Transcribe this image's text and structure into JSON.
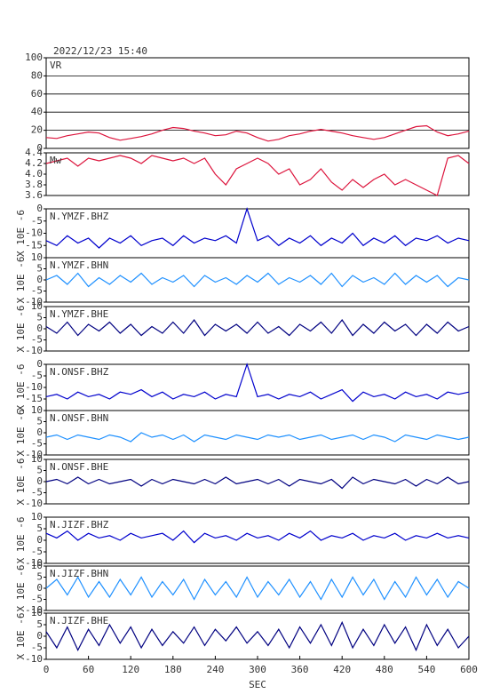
{
  "header": {
    "timestamp": "2022/12/23 15:40"
  },
  "chart_data": [
    {
      "type": "line",
      "title": "VR",
      "color": "#dc143c",
      "grid": true,
      "ylim": [
        0,
        100
      ],
      "yticks": [
        0,
        20,
        40,
        60,
        80,
        100
      ],
      "x": [
        0,
        15,
        30,
        45,
        60,
        75,
        90,
        105,
        120,
        135,
        150,
        165,
        180,
        195,
        210,
        225,
        240,
        255,
        270,
        285,
        300,
        315,
        330,
        345,
        360,
        375,
        390,
        405,
        420,
        435,
        450,
        465,
        480,
        495,
        510,
        525,
        540,
        555,
        570,
        585,
        600
      ],
      "values": [
        12,
        11,
        14,
        16,
        18,
        17,
        12,
        9,
        11,
        13,
        16,
        20,
        23,
        22,
        19,
        17,
        14,
        15,
        19,
        17,
        12,
        8,
        10,
        14,
        16,
        19,
        21,
        19,
        17,
        14,
        12,
        10,
        12,
        16,
        20,
        24,
        25,
        18,
        14,
        16,
        19
      ]
    },
    {
      "type": "line",
      "title": "Mw",
      "color": "#dc143c",
      "grid": false,
      "ylim": [
        3.6,
        4.4
      ],
      "yticks": [
        {
          "value": 3.6,
          "label": "3.6"
        },
        {
          "value": 3.8,
          "label": "3.8"
        },
        {
          "value": 4.0,
          "label": "4.0"
        },
        {
          "value": 4.2,
          "label": "4.2"
        },
        {
          "value": 4.4,
          "label": "4.4"
        }
      ],
      "x": [
        0,
        15,
        30,
        45,
        60,
        75,
        90,
        105,
        120,
        135,
        150,
        165,
        180,
        195,
        210,
        225,
        240,
        255,
        270,
        285,
        300,
        315,
        330,
        345,
        360,
        375,
        390,
        405,
        420,
        435,
        450,
        465,
        480,
        495,
        510,
        525,
        540,
        555,
        570,
        585,
        600
      ],
      "values": [
        4.2,
        4.25,
        4.3,
        4.15,
        4.3,
        4.25,
        4.3,
        4.35,
        4.3,
        4.2,
        4.35,
        4.3,
        4.25,
        4.3,
        4.2,
        4.3,
        4.0,
        3.8,
        4.1,
        4.2,
        4.3,
        4.2,
        4.0,
        4.1,
        3.8,
        3.9,
        4.1,
        3.85,
        3.7,
        3.9,
        3.75,
        3.9,
        4.0,
        3.8,
        3.9,
        3.8,
        3.7,
        3.6,
        4.3,
        4.35,
        4.2
      ]
    },
    {
      "type": "line",
      "title": "N.YMZF.BHZ",
      "ylabel": "X 10E -6",
      "color": "#0000cd",
      "ylim": [
        -20,
        0
      ],
      "yticks": [
        0,
        -5,
        -10,
        -15
      ],
      "x": [
        0,
        15,
        30,
        45,
        60,
        75,
        90,
        105,
        120,
        135,
        150,
        165,
        180,
        195,
        210,
        225,
        240,
        255,
        270,
        285,
        300,
        315,
        330,
        345,
        360,
        375,
        390,
        405,
        420,
        435,
        450,
        465,
        480,
        495,
        510,
        525,
        540,
        555,
        570,
        585,
        600
      ],
      "values": [
        -13,
        -15,
        -11,
        -14,
        -12,
        -16,
        -12,
        -14,
        -11,
        -15,
        -13,
        -12,
        -15,
        -11,
        -14,
        -12,
        -13,
        -11,
        -14,
        0,
        -13,
        -11,
        -15,
        -12,
        -14,
        -11,
        -15,
        -12,
        -14,
        -10,
        -15,
        -12,
        -14,
        -11,
        -15,
        -12,
        -13,
        -11,
        -14,
        -12,
        -13
      ]
    },
    {
      "type": "line",
      "title": "N.YMZF.BHN",
      "ylabel": "X 10E -6",
      "color": "#1e90ff",
      "ylim": [
        -10,
        10
      ],
      "yticks": [
        10,
        5,
        0,
        -5,
        -10
      ],
      "x": [
        0,
        15,
        30,
        45,
        60,
        75,
        90,
        105,
        120,
        135,
        150,
        165,
        180,
        195,
        210,
        225,
        240,
        255,
        270,
        285,
        300,
        315,
        330,
        345,
        360,
        375,
        390,
        405,
        420,
        435,
        450,
        465,
        480,
        495,
        510,
        525,
        540,
        555,
        570,
        585,
        600
      ],
      "values": [
        0,
        2,
        -2,
        3,
        -3,
        1,
        -2,
        2,
        -1,
        3,
        -2,
        1,
        -1,
        2,
        -3,
        2,
        -1,
        1,
        -2,
        2,
        -1,
        3,
        -2,
        1,
        -1,
        2,
        -2,
        3,
        -3,
        2,
        -1,
        1,
        -2,
        3,
        -2,
        2,
        -1,
        2,
        -3,
        1,
        0
      ]
    },
    {
      "type": "line",
      "title": "N.YMZF.BHE",
      "ylabel": "X 10E -6",
      "color": "#000080",
      "ylim": [
        -10,
        10
      ],
      "yticks": [
        10,
        5,
        0,
        -5,
        -10
      ],
      "x": [
        0,
        15,
        30,
        45,
        60,
        75,
        90,
        105,
        120,
        135,
        150,
        165,
        180,
        195,
        210,
        225,
        240,
        255,
        270,
        285,
        300,
        315,
        330,
        345,
        360,
        375,
        390,
        405,
        420,
        435,
        450,
        465,
        480,
        495,
        510,
        525,
        540,
        555,
        570,
        585,
        600
      ],
      "values": [
        1,
        -2,
        3,
        -3,
        2,
        -1,
        3,
        -2,
        2,
        -3,
        1,
        -2,
        3,
        -2,
        4,
        -3,
        2,
        -1,
        2,
        -2,
        3,
        -2,
        1,
        -3,
        2,
        -1,
        3,
        -2,
        4,
        -3,
        2,
        -2,
        3,
        -1,
        2,
        -3,
        2,
        -2,
        3,
        -1,
        1
      ]
    },
    {
      "type": "line",
      "title": "N.ONSF.BHZ",
      "ylabel": "X 10E -6",
      "color": "#0000cd",
      "ylim": [
        -20,
        0
      ],
      "yticks": [
        0,
        -5,
        -10,
        -15
      ],
      "x": [
        0,
        15,
        30,
        45,
        60,
        75,
        90,
        105,
        120,
        135,
        150,
        165,
        180,
        195,
        210,
        225,
        240,
        255,
        270,
        285,
        300,
        315,
        330,
        345,
        360,
        375,
        390,
        405,
        420,
        435,
        450,
        465,
        480,
        495,
        510,
        525,
        540,
        555,
        570,
        585,
        600
      ],
      "values": [
        -14,
        -13,
        -15,
        -12,
        -14,
        -13,
        -15,
        -12,
        -13,
        -11,
        -14,
        -12,
        -15,
        -13,
        -14,
        -12,
        -15,
        -13,
        -14,
        0,
        -14,
        -13,
        -15,
        -13,
        -14,
        -12,
        -15,
        -13,
        -11,
        -16,
        -12,
        -14,
        -13,
        -15,
        -12,
        -14,
        -13,
        -15,
        -12,
        -13,
        -12
      ]
    },
    {
      "type": "line",
      "title": "N.ONSF.BHN",
      "ylabel": "X 10E -6",
      "color": "#1e90ff",
      "ylim": [
        -10,
        10
      ],
      "yticks": [
        10,
        5,
        0,
        -5,
        -10
      ],
      "x": [
        0,
        15,
        30,
        45,
        60,
        75,
        90,
        105,
        120,
        135,
        150,
        165,
        180,
        195,
        210,
        225,
        240,
        255,
        270,
        285,
        300,
        315,
        330,
        345,
        360,
        375,
        390,
        405,
        420,
        435,
        450,
        465,
        480,
        495,
        510,
        525,
        540,
        555,
        570,
        585,
        600
      ],
      "values": [
        -2,
        -1,
        -3,
        -1,
        -2,
        -3,
        -1,
        -2,
        -4,
        0,
        -2,
        -1,
        -3,
        -1,
        -4,
        -1,
        -2,
        -3,
        -1,
        -2,
        -3,
        -1,
        -2,
        -1,
        -3,
        -2,
        -1,
        -3,
        -2,
        -1,
        -3,
        -1,
        -2,
        -4,
        -1,
        -2,
        -3,
        -1,
        -2,
        -3,
        -2
      ]
    },
    {
      "type": "line",
      "title": "N.ONSF.BHE",
      "ylabel": "X 10E -6",
      "color": "#000080",
      "ylim": [
        -10,
        10
      ],
      "yticks": [
        10,
        5,
        0,
        -5,
        -10
      ],
      "x": [
        0,
        15,
        30,
        45,
        60,
        75,
        90,
        105,
        120,
        135,
        150,
        165,
        180,
        195,
        210,
        225,
        240,
        255,
        270,
        285,
        300,
        315,
        330,
        345,
        360,
        375,
        390,
        405,
        420,
        435,
        450,
        465,
        480,
        495,
        510,
        525,
        540,
        555,
        570,
        585,
        600
      ],
      "values": [
        0,
        1,
        -1,
        2,
        -1,
        1,
        -1,
        0,
        1,
        -2,
        1,
        -1,
        1,
        0,
        -1,
        1,
        -1,
        2,
        -1,
        0,
        1,
        -1,
        1,
        -2,
        1,
        0,
        -1,
        1,
        -3,
        2,
        -1,
        1,
        0,
        -1,
        1,
        -2,
        1,
        -1,
        2,
        -1,
        0
      ]
    },
    {
      "type": "line",
      "title": "N.JIZF.BHZ",
      "ylabel": "X 10E -6",
      "color": "#0000cd",
      "ylim": [
        -10,
        10
      ],
      "yticks": [
        10,
        5,
        0,
        -5,
        -10
      ],
      "x": [
        0,
        15,
        30,
        45,
        60,
        75,
        90,
        105,
        120,
        135,
        150,
        165,
        180,
        195,
        210,
        225,
        240,
        255,
        270,
        285,
        300,
        315,
        330,
        345,
        360,
        375,
        390,
        405,
        420,
        435,
        450,
        465,
        480,
        495,
        510,
        525,
        540,
        555,
        570,
        585,
        600
      ],
      "values": [
        3,
        1,
        4,
        0,
        3,
        1,
        2,
        0,
        3,
        1,
        2,
        3,
        0,
        4,
        -1,
        3,
        1,
        2,
        0,
        3,
        1,
        2,
        0,
        3,
        1,
        4,
        0,
        2,
        1,
        3,
        0,
        2,
        1,
        3,
        0,
        2,
        1,
        3,
        1,
        2,
        1
      ]
    },
    {
      "type": "line",
      "title": "N.JIZF.BHN",
      "ylabel": "X 10E -6",
      "color": "#1e90ff",
      "ylim": [
        -10,
        10
      ],
      "yticks": [
        10,
        5,
        0,
        -5,
        -10
      ],
      "x": [
        0,
        15,
        30,
        45,
        60,
        75,
        90,
        105,
        120,
        135,
        150,
        165,
        180,
        195,
        210,
        225,
        240,
        255,
        270,
        285,
        300,
        315,
        330,
        345,
        360,
        375,
        390,
        405,
        420,
        435,
        450,
        465,
        480,
        495,
        510,
        525,
        540,
        555,
        570,
        585,
        600
      ],
      "values": [
        0,
        4,
        -3,
        5,
        -4,
        3,
        -4,
        4,
        -3,
        5,
        -4,
        3,
        -3,
        4,
        -5,
        4,
        -3,
        3,
        -4,
        5,
        -4,
        3,
        -3,
        4,
        -4,
        3,
        -5,
        4,
        -4,
        5,
        -3,
        4,
        -5,
        3,
        -4,
        5,
        -3,
        4,
        -4,
        3,
        0
      ]
    },
    {
      "type": "line",
      "title": "N.JIZF.BHE",
      "ylabel": "X 10E -6",
      "color": "#000080",
      "ylim": [
        -10,
        10
      ],
      "yticks": [
        10,
        5,
        0,
        -5,
        -10
      ],
      "xlabel": "SEC",
      "xlim": [
        0,
        600
      ],
      "xticks": [
        0,
        60,
        120,
        180,
        240,
        300,
        360,
        420,
        480,
        540,
        600
      ],
      "x": [
        0,
        15,
        30,
        45,
        60,
        75,
        90,
        105,
        120,
        135,
        150,
        165,
        180,
        195,
        210,
        225,
        240,
        255,
        270,
        285,
        300,
        315,
        330,
        345,
        360,
        375,
        390,
        405,
        420,
        435,
        450,
        465,
        480,
        495,
        510,
        525,
        540,
        555,
        570,
        585,
        600
      ],
      "values": [
        2,
        -5,
        4,
        -6,
        3,
        -4,
        5,
        -3,
        4,
        -5,
        3,
        -4,
        2,
        -3,
        4,
        -4,
        3,
        -2,
        4,
        -3,
        2,
        -4,
        3,
        -5,
        4,
        -3,
        5,
        -4,
        6,
        -5,
        3,
        -4,
        5,
        -3,
        4,
        -6,
        5,
        -4,
        3,
        -5,
        0
      ]
    }
  ]
}
